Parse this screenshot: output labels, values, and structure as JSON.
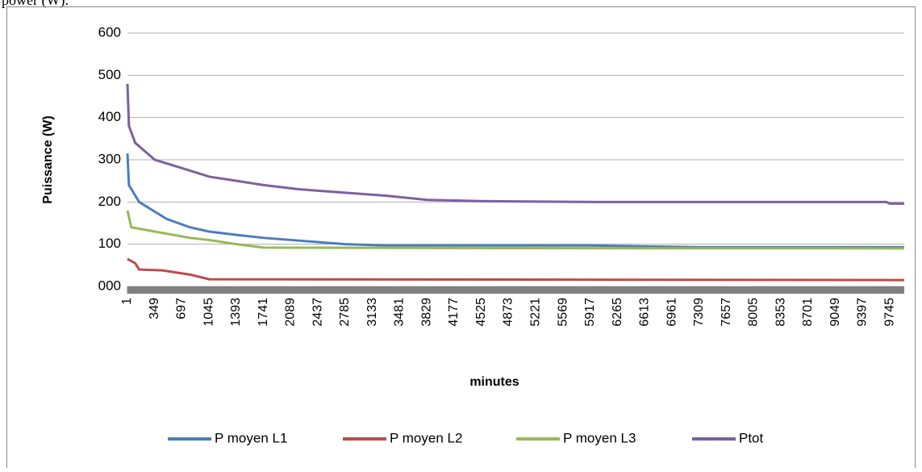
{
  "caption_fragment": "power (W).",
  "chart_data": {
    "type": "line",
    "x_label": "minutes",
    "y_label": "Puissance (W)",
    "xlim": [
      1,
      9930
    ],
    "ylim": [
      0,
      600
    ],
    "xticks": [
      1,
      349,
      697,
      1045,
      1393,
      1741,
      2089,
      2437,
      2785,
      3133,
      3481,
      3829,
      4177,
      4525,
      4873,
      5221,
      5569,
      5917,
      6265,
      6613,
      6961,
      7309,
      7657,
      8005,
      8353,
      8701,
      9049,
      9397,
      9745
    ],
    "yticks": [
      {
        "value": 0,
        "label": "000"
      },
      100,
      200,
      300,
      400,
      500,
      600
    ],
    "grid": true,
    "legend": "bottom",
    "series": [
      {
        "name": "P moyen L1",
        "color": "#4a7ebb",
        "x": [
          1,
          20,
          150,
          500,
          800,
          1045,
          1393,
          1741,
          2089,
          2785,
          3300,
          5900,
          7300,
          9930
        ],
        "values": [
          315,
          240,
          200,
          160,
          140,
          130,
          122,
          115,
          110,
          100,
          97,
          97,
          93,
          93
        ]
      },
      {
        "name": "P moyen L2",
        "color": "#be4b48",
        "x": [
          1,
          100,
          150,
          450,
          800,
          1045,
          9930
        ],
        "values": [
          65,
          55,
          40,
          38,
          28,
          17,
          15
        ]
      },
      {
        "name": "P moyen L3",
        "color": "#98b954",
        "x": [
          1,
          50,
          349,
          800,
          1045,
          1393,
          1741,
          4000,
          9930
        ],
        "values": [
          180,
          140,
          130,
          115,
          110,
          100,
          92,
          91,
          90
        ]
      },
      {
        "name": "Ptot",
        "color": "#7d60a0",
        "x": [
          1,
          20,
          100,
          350,
          700,
          1045,
          1393,
          1741,
          2200,
          2785,
          3300,
          3829,
          4525,
          6000,
          9700,
          9745,
          9930
        ],
        "values": [
          480,
          380,
          340,
          300,
          280,
          260,
          250,
          240,
          230,
          222,
          215,
          205,
          202,
          200,
          200,
          196,
          196
        ]
      }
    ]
  }
}
